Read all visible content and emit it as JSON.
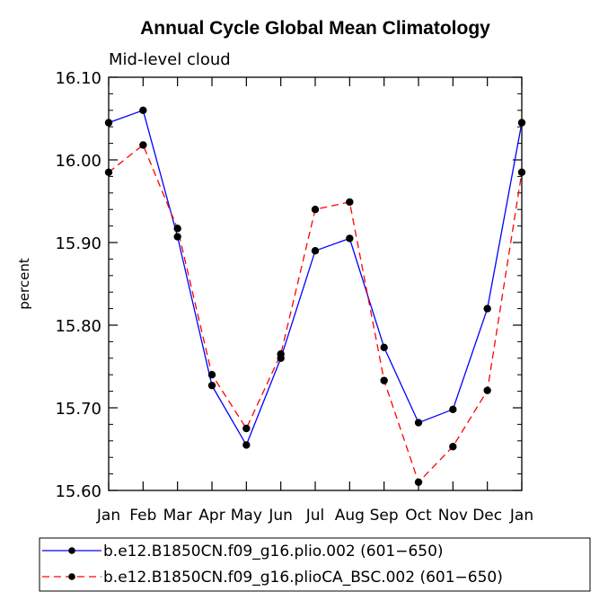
{
  "chart_data": {
    "type": "line",
    "title": "Annual Cycle Global Mean Climatology",
    "subtitle": "Mid-level cloud",
    "xlabel": "",
    "ylabel": "percent",
    "categories": [
      "Jan",
      "Feb",
      "Mar",
      "Apr",
      "May",
      "Jun",
      "Jul",
      "Aug",
      "Sep",
      "Oct",
      "Nov",
      "Dec",
      "Jan"
    ],
    "ylim": [
      15.6,
      16.1
    ],
    "yticks": [
      "15.60",
      "15.70",
      "15.80",
      "15.90",
      "16.00",
      "16.10"
    ],
    "grid": false,
    "legend_position": "bottom",
    "series": [
      {
        "name": "b.e12.B1850CN.f09_g16.plio.002 (601−650)",
        "color": "#0000ff",
        "dash": "solid",
        "values": [
          16.045,
          16.06,
          15.907,
          15.727,
          15.655,
          15.76,
          15.89,
          15.905,
          15.773,
          15.682,
          15.698,
          15.82,
          16.045
        ]
      },
      {
        "name": "b.e12.B1850CN.f09_g16.plioCA_BSC.002 (601−650)",
        "color": "#ff0000",
        "dash": "dashed",
        "values": [
          15.985,
          16.018,
          15.917,
          15.74,
          15.675,
          15.765,
          15.94,
          15.949,
          15.733,
          15.61,
          15.653,
          15.721,
          15.985
        ]
      }
    ]
  }
}
